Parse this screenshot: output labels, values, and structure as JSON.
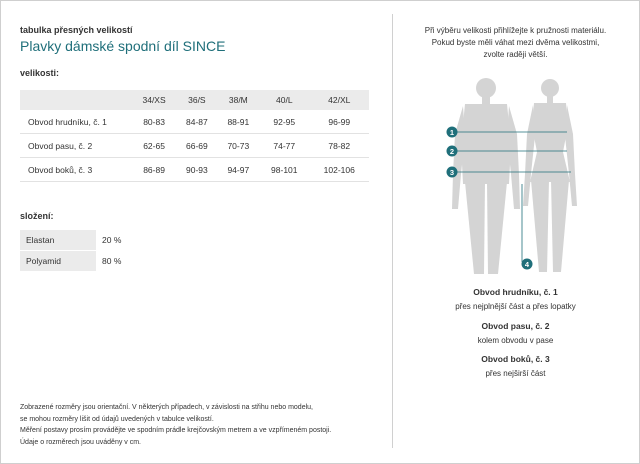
{
  "header": {
    "subtitle": "tabulka přesných velikostí",
    "title": "Plavky dámské spodní díl SINCE"
  },
  "sizes": {
    "label": "velikosti:",
    "columns": [
      "34/XS",
      "36/S",
      "38/M",
      "40/L",
      "42/XL"
    ],
    "rows": [
      {
        "label": "Obvod hrudníku, č. 1",
        "values": [
          "80-83",
          "84-87",
          "88-91",
          "92-95",
          "96-99"
        ]
      },
      {
        "label": "Obvod pasu, č. 2",
        "values": [
          "62-65",
          "66-69",
          "70-73",
          "74-77",
          "78-82"
        ]
      },
      {
        "label": "Obvod boků, č. 3",
        "values": [
          "86-89",
          "90-93",
          "94-97",
          "98-101",
          "102-106"
        ]
      }
    ]
  },
  "composition": {
    "label": "složení:",
    "rows": [
      {
        "material": "Elastan",
        "percent": "20 %"
      },
      {
        "material": "Polyamid",
        "percent": "80 %"
      }
    ]
  },
  "footnote": {
    "line1": "Zobrazené rozměry jsou orientační. V některých případech, v závislosti na střihu nebo modelu,",
    "line2": "se mohou rozměry lišit od údajů uvedených v tabulce velikostí.",
    "line3": "Měření postavy prosím provádějte ve spodním prádle krejčovským metrem a ve vzpřímeném postoji.",
    "line4": "Údaje o rozměrech jsou uváděny v cm."
  },
  "guide": {
    "intro_line1": "Při výběru velikosti přihlížejte k pružnosti materiálu.",
    "intro_line2": "Pokud byste měli váhat mezi dvěma velikostmi,",
    "intro_line3": "zvolte raději větší.",
    "markers": [
      "1",
      "2",
      "3",
      "4"
    ],
    "measures": [
      {
        "title": "Obvod hrudníku, č. 1",
        "desc": "přes nejplnější část a přes lopatky"
      },
      {
        "title": "Obvod pasu, č. 2",
        "desc": "kolem obvodu v pase"
      },
      {
        "title": "Obvod boků, č. 3",
        "desc": "přes nejširší část"
      }
    ],
    "accent_color": "#1f6f7a",
    "figure_color": "#d4d4d4"
  }
}
